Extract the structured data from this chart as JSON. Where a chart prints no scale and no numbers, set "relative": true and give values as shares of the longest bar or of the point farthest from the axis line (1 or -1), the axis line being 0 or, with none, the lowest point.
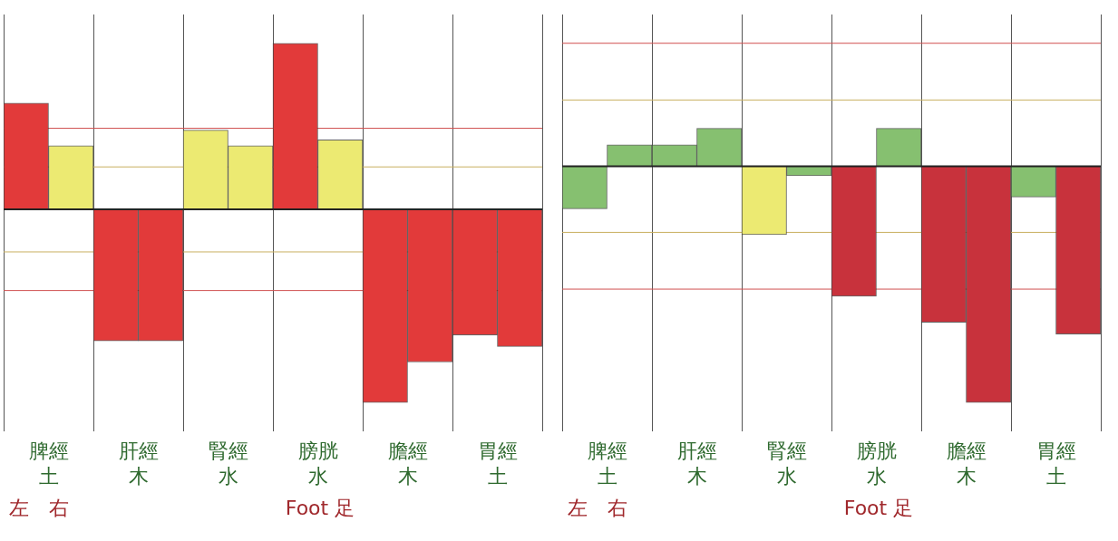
{
  "chart_data": [
    {
      "type": "bar",
      "relative": true,
      "categories": [
        "脾經土",
        "肝經木",
        "腎經水",
        "膀胱水",
        "膽經木",
        "胃經土"
      ],
      "series": [
        {
          "colors": [
            "#e23a3a",
            "#e23a3a",
            "#ecea72",
            "#e23a3a",
            "#e23a3a",
            "#e23a3a"
          ],
          "values": [
            0.55,
            -0.68,
            0.41,
            0.86,
            -1,
            -0.65
          ]
        },
        {
          "colors": [
            "#ecea72",
            "#e23a3a",
            "#ecea72",
            "#ecea72",
            "#e23a3a",
            "#e23a3a"
          ],
          "values": [
            0.33,
            -0.68,
            0.33,
            0.36,
            -0.79,
            -0.71
          ]
        }
      ],
      "ref_lines": [
        {
          "axis": "y",
          "value": 0.42,
          "color": "#d05050"
        },
        {
          "axis": "y",
          "value": -0.42,
          "color": "#d05050"
        },
        {
          "axis": "y",
          "value": 0.22,
          "color": "#c8b060"
        },
        {
          "axis": "y",
          "value": -0.22,
          "color": "#c8b060"
        }
      ],
      "grid": "x",
      "legend": false,
      "annotations": [
        "左",
        "右",
        "Foot 足"
      ]
    },
    {
      "type": "bar",
      "relative": true,
      "categories": [
        "脾經土",
        "肝經木",
        "腎經水",
        "膀胱水",
        "膽經木",
        "胃經土"
      ],
      "series": [
        {
          "colors": [
            "#86c070",
            "#86c070",
            "#ecea72",
            "#c8323c",
            "#c8323c",
            "#86c070"
          ],
          "values": [
            -0.18,
            0.09,
            -0.29,
            -0.55,
            -0.66,
            -0.13
          ]
        },
        {
          "colors": [
            "#86c070",
            "#86c070",
            "#86c070",
            "#86c070",
            "#c8323c",
            "#c8323c"
          ],
          "values": [
            0.09,
            0.16,
            -0.04,
            0.16,
            -1,
            -0.71
          ]
        }
      ],
      "ref_lines": [
        {
          "axis": "y",
          "value": 0.52,
          "color": "#d05050"
        },
        {
          "axis": "y",
          "value": -0.52,
          "color": "#d05050"
        },
        {
          "axis": "y",
          "value": 0.28,
          "color": "#c8b060"
        },
        {
          "axis": "y",
          "value": -0.28,
          "color": "#c8b060"
        }
      ],
      "grid": "x",
      "legend": false,
      "annotations": [
        "左",
        "右",
        "Foot 足"
      ]
    }
  ]
}
